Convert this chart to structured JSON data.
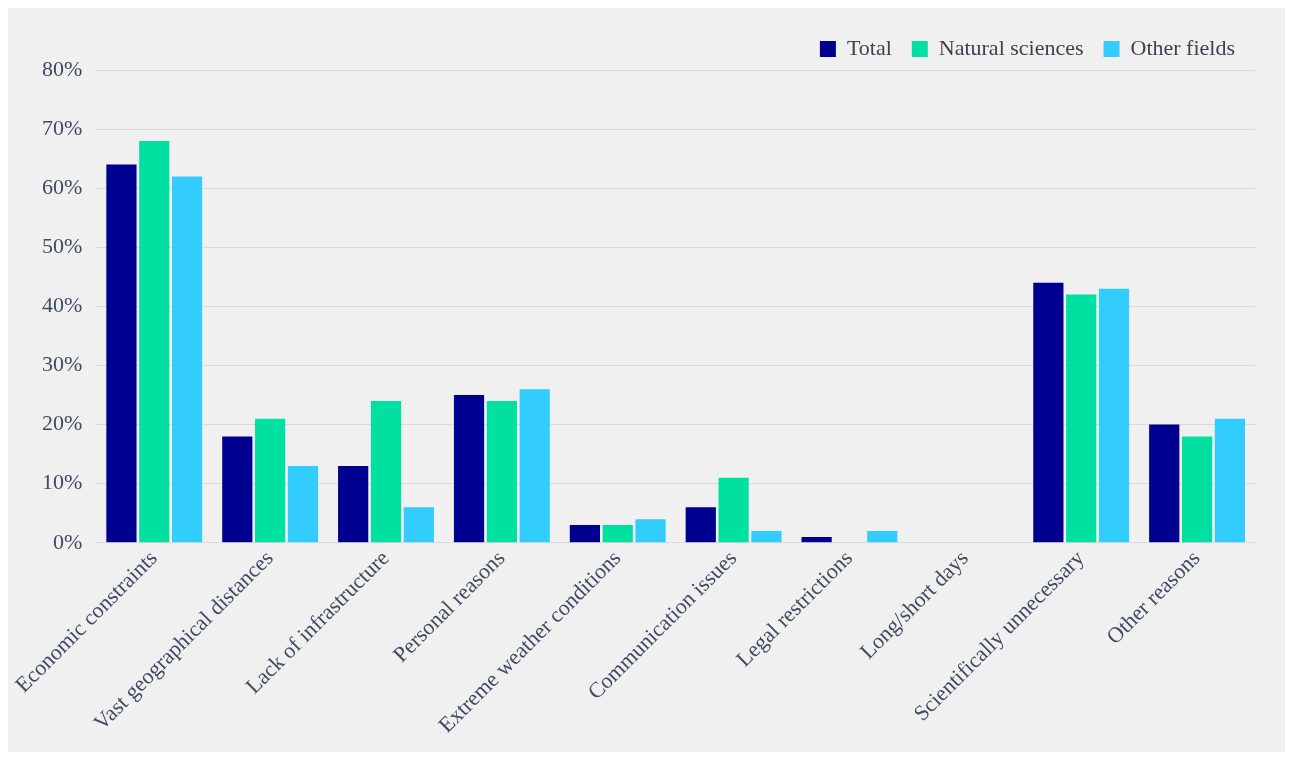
{
  "chart_data": {
    "type": "bar",
    "categories": [
      "Economic constraints",
      "Vast geographical distances",
      "Lack of infrastructure",
      "Personal reasons",
      "Extreme weather conditions",
      "Communication issues",
      "Legal restrictions",
      "Long/short days",
      "Scientifically unnecessary",
      "Other reasons"
    ],
    "series": [
      {
        "name": "Total",
        "color": "#000090",
        "values": [
          64,
          18,
          13,
          25,
          3,
          6,
          1,
          0,
          44,
          20
        ]
      },
      {
        "name": "Natural sciences",
        "color": "#00e0a0",
        "values": [
          68,
          21,
          24,
          24,
          3,
          11,
          0,
          0,
          42,
          18
        ]
      },
      {
        "name": "Other fields",
        "color": "#33ccff",
        "values": [
          62,
          13,
          6,
          26,
          4,
          2,
          2,
          0,
          43,
          21
        ]
      }
    ],
    "ylim": [
      0,
      80
    ],
    "yticks": [
      {
        "value": 0,
        "label": "0%"
      },
      {
        "value": 10,
        "label": "10%"
      },
      {
        "value": 20,
        "label": "20%"
      },
      {
        "value": 30,
        "label": "30%"
      },
      {
        "value": 40,
        "label": "40%"
      },
      {
        "value": 50,
        "label": "50%"
      },
      {
        "value": 60,
        "label": "60%"
      },
      {
        "value": 70,
        "label": "70%"
      },
      {
        "value": 80,
        "label": "80%"
      }
    ],
    "grid": "y",
    "legend": "top right"
  }
}
